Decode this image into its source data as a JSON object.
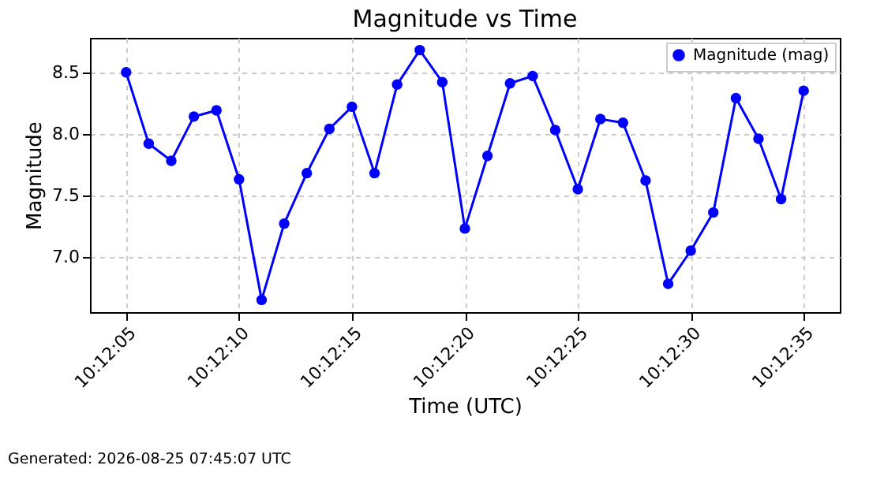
{
  "chart_data": {
    "type": "line",
    "title": "Magnitude vs Time",
    "xlabel": "Time (UTC)",
    "ylabel": "Magnitude",
    "x": [
      "2026-08-25T10:12:05",
      "2026-08-25T10:12:06",
      "2026-08-25T10:12:07",
      "2026-08-25T10:12:08",
      "2026-08-25T10:12:09",
      "2026-08-25T10:12:10",
      "2026-08-25T10:12:11",
      "2026-08-25T10:12:12",
      "2026-08-25T10:12:13",
      "2026-08-25T10:12:14",
      "2026-08-25T10:12:15",
      "2026-08-25T10:12:16",
      "2026-08-25T10:12:17",
      "2026-08-25T10:12:18",
      "2026-08-25T10:12:19",
      "2026-08-25T10:12:20",
      "2026-08-25T10:12:21",
      "2026-08-25T10:12:22",
      "2026-08-25T10:12:23",
      "2026-08-25T10:12:24",
      "2026-08-25T10:12:25",
      "2026-08-25T10:12:26",
      "2026-08-25T10:12:27",
      "2026-08-25T10:12:28",
      "2026-08-25T10:12:29",
      "2026-08-25T10:12:30",
      "2026-08-25T10:12:31",
      "2026-08-25T10:12:32",
      "2026-08-25T10:12:33",
      "2026-08-25T10:12:34",
      "2026-08-25T10:12:35"
    ],
    "series": [
      {
        "name": "Magnitude (mag)",
        "color": "#0000ff",
        "values": [
          8.5,
          7.92,
          7.78,
          8.14,
          8.19,
          7.63,
          6.65,
          7.27,
          7.68,
          8.04,
          8.22,
          7.68,
          8.4,
          8.68,
          8.42,
          7.23,
          7.82,
          8.41,
          8.47,
          8.03,
          7.55,
          8.12,
          8.09,
          7.62,
          6.78,
          7.05,
          7.36,
          8.29,
          7.96,
          7.47,
          8.35
        ]
      }
    ],
    "xlim": [
      "2026-08-25T10:12:03.4",
      "2026-08-25T10:12:36.6"
    ],
    "xticks": [
      {
        "value": "2026-08-25T10:12:05",
        "label": "10:12:05"
      },
      {
        "value": "2026-08-25T10:12:10",
        "label": "10:12:10"
      },
      {
        "value": "2026-08-25T10:12:15",
        "label": "10:12:15"
      },
      {
        "value": "2026-08-25T10:12:20",
        "label": "10:12:20"
      },
      {
        "value": "2026-08-25T10:12:25",
        "label": "10:12:25"
      },
      {
        "value": "2026-08-25T10:12:30",
        "label": "10:12:30"
      },
      {
        "value": "2026-08-25T10:12:35",
        "label": "10:12:35"
      }
    ],
    "ylim": [
      6.55,
      8.78
    ],
    "yticks": [
      {
        "value": 7.0,
        "label": "7.0"
      },
      {
        "value": 7.5,
        "label": "7.5"
      },
      {
        "value": 8.0,
        "label": "8.0"
      },
      {
        "value": 8.5,
        "label": "8.5"
      }
    ],
    "grid": true,
    "legend": "top right",
    "marker": "circle",
    "line_style": "solid",
    "annotations": [
      "Generated: 2026-08-25 07:45:07 UTC"
    ]
  }
}
